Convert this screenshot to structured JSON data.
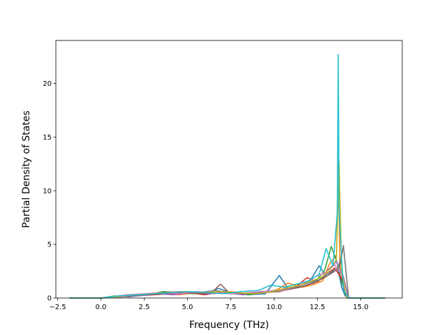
{
  "chart_data": {
    "type": "line",
    "title": "",
    "xlabel": "Frequency (THz)",
    "ylabel": "Partial Density of States",
    "xlim": [
      -2.6,
      17.4
    ],
    "ylim": [
      0,
      24
    ],
    "xticks": [
      -2.5,
      0.0,
      2.5,
      5.0,
      7.5,
      10.0,
      12.5,
      15.0
    ],
    "xtick_labels": [
      "−2.5",
      "0.0",
      "2.5",
      "5.0",
      "7.5",
      "10.0",
      "12.5",
      "15.0"
    ],
    "yticks": [
      0,
      5,
      10,
      15,
      20
    ],
    "ytick_labels": [
      "0",
      "5",
      "10",
      "15",
      "20"
    ],
    "grid": false,
    "legend": "none",
    "colors": [
      "#1f77b4",
      "#ff7f0e",
      "#2ca02c",
      "#d62728",
      "#9467bd",
      "#8c564b",
      "#e377c2",
      "#7f7f7f",
      "#bcbd22",
      "#17becf"
    ],
    "series": [
      {
        "color": "#1f77b4",
        "x": [
          -1.8,
          0.0,
          0.5,
          1.0,
          2.0,
          3.0,
          4.0,
          5.0,
          6.0,
          6.8,
          7.5,
          8.5,
          9.5,
          10.3,
          10.8,
          11.4,
          12.0,
          12.6,
          13.0,
          13.4,
          13.7,
          13.9,
          14.1,
          14.3,
          16.4
        ],
        "y": [
          0,
          0,
          0.05,
          0.1,
          0.2,
          0.3,
          0.4,
          0.5,
          0.4,
          0.9,
          0.5,
          0.3,
          0.4,
          2.1,
          0.9,
          1.2,
          1.4,
          3.0,
          2.0,
          2.5,
          2.6,
          1.0,
          0.2,
          0,
          0
        ]
      },
      {
        "color": "#ff7f0e",
        "x": [
          -1.8,
          0.0,
          0.6,
          1.5,
          2.5,
          3.5,
          4.5,
          5.5,
          6.5,
          7.5,
          8.5,
          9.5,
          10.2,
          10.8,
          11.6,
          12.2,
          12.8,
          13.2,
          13.6,
          13.7,
          13.8,
          14.0,
          14.3,
          16.4
        ],
        "y": [
          0,
          0,
          0.1,
          0.2,
          0.3,
          0.4,
          0.3,
          0.5,
          0.4,
          0.6,
          0.4,
          0.5,
          0.8,
          1.4,
          1.0,
          1.2,
          1.6,
          3.2,
          4.0,
          12.6,
          3.0,
          1.0,
          0,
          0
        ]
      },
      {
        "color": "#2ca02c",
        "x": [
          -1.8,
          0.0,
          0.8,
          1.6,
          2.6,
          3.6,
          4.6,
          5.6,
          6.6,
          7.6,
          8.6,
          9.6,
          10.4,
          11.0,
          11.8,
          12.4,
          12.9,
          13.3,
          13.6,
          13.9,
          14.2,
          16.4
        ],
        "y": [
          0,
          0,
          0.2,
          0.1,
          0.3,
          0.6,
          0.5,
          0.4,
          0.5,
          0.4,
          0.3,
          0.6,
          0.7,
          1.0,
          1.3,
          1.6,
          2.5,
          4.8,
          3.5,
          1.5,
          0,
          0
        ]
      },
      {
        "color": "#d62728",
        "x": [
          -1.8,
          0.0,
          1.0,
          2.0,
          3.0,
          4.0,
          5.0,
          6.0,
          7.0,
          8.0,
          9.0,
          10.0,
          10.6,
          11.3,
          11.9,
          12.5,
          13.0,
          13.5,
          13.9,
          14.2,
          16.4
        ],
        "y": [
          0,
          0,
          0.1,
          0.2,
          0.3,
          0.4,
          0.5,
          0.3,
          0.6,
          0.4,
          0.5,
          0.6,
          0.9,
          1.1,
          1.9,
          1.5,
          2.2,
          2.8,
          1.8,
          0,
          0
        ]
      },
      {
        "color": "#9467bd",
        "x": [
          -1.8,
          0.0,
          1.2,
          2.2,
          3.2,
          4.2,
          5.2,
          6.2,
          7.2,
          8.2,
          9.2,
          10.1,
          10.9,
          11.5,
          12.1,
          12.7,
          13.1,
          13.6,
          14.0,
          14.3,
          16.4
        ],
        "y": [
          0,
          0,
          0.1,
          0.2,
          0.4,
          0.3,
          0.5,
          0.4,
          0.5,
          0.3,
          0.6,
          0.7,
          0.8,
          1.0,
          1.3,
          1.8,
          2.6,
          3.4,
          2.0,
          0,
          0
        ]
      },
      {
        "color": "#8c564b",
        "x": [
          -1.8,
          0.0,
          1.4,
          2.4,
          3.4,
          4.4,
          5.4,
          6.4,
          6.9,
          7.4,
          8.4,
          9.4,
          10.3,
          11.1,
          11.7,
          12.3,
          12.9,
          13.4,
          13.8,
          14.0,
          14.3,
          16.4
        ],
        "y": [
          0,
          0,
          0.2,
          0.3,
          0.4,
          0.5,
          0.4,
          0.5,
          1.3,
          0.5,
          0.4,
          0.5,
          0.6,
          0.9,
          1.1,
          1.4,
          1.9,
          2.4,
          3.0,
          4.9,
          0,
          0
        ]
      },
      {
        "color": "#e377c2",
        "x": [
          -1.8,
          0.0,
          1.5,
          2.5,
          3.5,
          4.5,
          5.5,
          6.5,
          7.5,
          8.5,
          9.5,
          10.5,
          11.2,
          11.9,
          12.4,
          13.0,
          13.5,
          13.9,
          14.2,
          16.4
        ],
        "y": [
          0,
          0,
          0.3,
          0.4,
          0.5,
          0.4,
          0.6,
          0.5,
          0.4,
          0.5,
          0.6,
          0.7,
          1.0,
          1.5,
          2.0,
          2.4,
          3.1,
          2.2,
          0,
          0
        ]
      },
      {
        "color": "#7f7f7f",
        "x": [
          -1.8,
          0.0,
          1.6,
          2.6,
          3.6,
          4.6,
          5.6,
          6.6,
          7.6,
          8.6,
          9.6,
          10.6,
          11.4,
          12.0,
          12.6,
          13.1,
          13.7,
          14.0,
          14.3,
          16.4
        ],
        "y": [
          0,
          0,
          0.2,
          0.3,
          0.5,
          0.6,
          0.5,
          0.7,
          0.5,
          0.4,
          0.5,
          0.8,
          1.1,
          1.4,
          1.7,
          2.3,
          2.8,
          4.8,
          0,
          0
        ]
      },
      {
        "color": "#bcbd22",
        "x": [
          -1.8,
          0.0,
          0.9,
          1.9,
          2.9,
          3.9,
          4.9,
          5.9,
          6.9,
          7.9,
          8.9,
          9.9,
          10.7,
          11.5,
          12.2,
          12.8,
          13.3,
          13.6,
          13.75,
          13.9,
          14.2,
          16.4
        ],
        "y": [
          0,
          0,
          0.1,
          0.3,
          0.4,
          0.5,
          0.6,
          0.5,
          0.6,
          0.5,
          0.4,
          0.6,
          0.9,
          1.2,
          1.6,
          2.0,
          2.8,
          3.6,
          12.8,
          2.5,
          0,
          0
        ]
      },
      {
        "color": "#17becf",
        "x": [
          -1.8,
          0.0,
          1.1,
          2.1,
          3.1,
          4.1,
          5.1,
          6.1,
          7.1,
          8.1,
          9.1,
          9.8,
          10.6,
          11.3,
          12.0,
          12.6,
          13.0,
          13.4,
          13.65,
          13.7,
          13.75,
          14.0,
          14.3,
          16.4
        ],
        "y": [
          0,
          0,
          0.2,
          0.3,
          0.4,
          0.5,
          0.6,
          0.5,
          0.4,
          0.6,
          0.7,
          1.2,
          1.0,
          1.3,
          1.6,
          2.2,
          4.6,
          3.0,
          8.0,
          22.7,
          8.0,
          0.8,
          0,
          0
        ]
      }
    ]
  }
}
